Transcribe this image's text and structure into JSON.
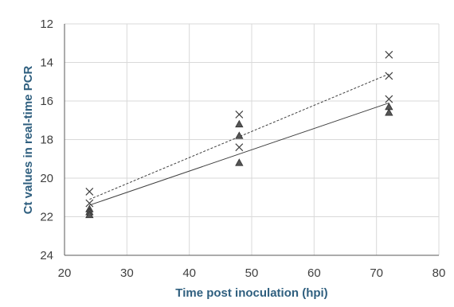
{
  "chart_data": {
    "type": "scatter",
    "title": "",
    "xlabel": "Time post inoculation (hpi)",
    "ylabel": "Ct values in real-time PCR",
    "xlim": [
      20,
      80
    ],
    "ylim": [
      24,
      12
    ],
    "y_reversed": true,
    "x_ticks": [
      20,
      30,
      40,
      50,
      60,
      70,
      80
    ],
    "y_ticks": [
      12,
      14,
      16,
      18,
      20,
      22,
      24
    ],
    "grid": true,
    "legend": "none",
    "series": [
      {
        "marker": "x",
        "color": "#404040",
        "points": [
          {
            "x": 24,
            "y": 20.7
          },
          {
            "x": 24,
            "y": 21.3
          },
          {
            "x": 48,
            "y": 16.7
          },
          {
            "x": 48,
            "y": 18.4
          },
          {
            "x": 72,
            "y": 13.6
          },
          {
            "x": 72,
            "y": 14.7
          },
          {
            "x": 72,
            "y": 15.9
          }
        ],
        "trendline": {
          "style": "dashed",
          "from": {
            "x": 24,
            "y": 21.1
          },
          "to": {
            "x": 72,
            "y": 14.6
          }
        }
      },
      {
        "marker": "triangle",
        "color": "#555555",
        "points": [
          {
            "x": 24,
            "y": 21.6
          },
          {
            "x": 24,
            "y": 21.75
          },
          {
            "x": 24,
            "y": 21.9
          },
          {
            "x": 48,
            "y": 17.2
          },
          {
            "x": 48,
            "y": 17.8
          },
          {
            "x": 48,
            "y": 19.2
          },
          {
            "x": 72,
            "y": 16.3
          },
          {
            "x": 72,
            "y": 16.6
          }
        ],
        "trendline": {
          "style": "solid",
          "from": {
            "x": 24,
            "y": 21.4
          },
          "to": {
            "x": 72,
            "y": 16.1
          }
        }
      }
    ]
  }
}
